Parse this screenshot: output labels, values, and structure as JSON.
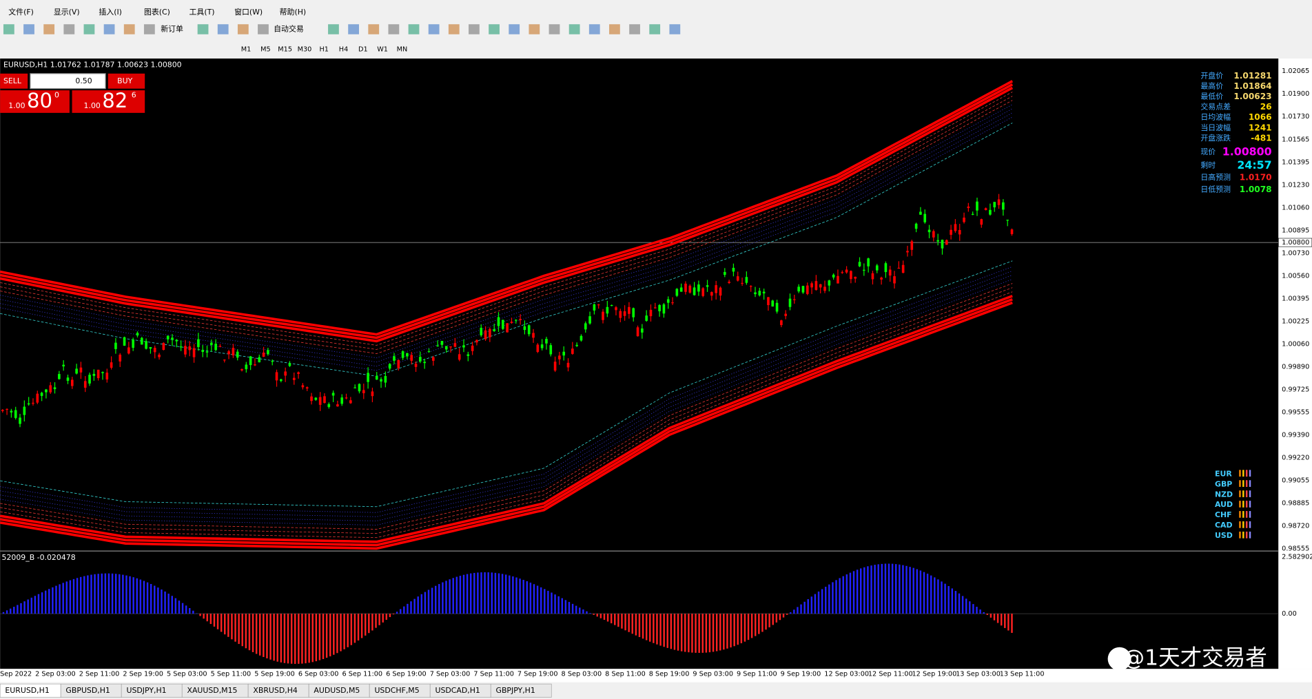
{
  "menu": [
    "文件(F)",
    "显示(V)",
    "插入(I)",
    "图表(C)",
    "工具(T)",
    "窗口(W)",
    "帮助(H)"
  ],
  "toolbar": {
    "new_order": "新订单",
    "auto_trade": "自动交易",
    "timeframes": [
      "M1",
      "M5",
      "M15",
      "M30",
      "H1",
      "H4",
      "D1",
      "W1",
      "MN"
    ]
  },
  "chart_header": "EURUSD,H1  1.01762 1.01787 1.00623 1.00800",
  "trade_panel": {
    "sell": "SELL",
    "buy": "BUY",
    "lots": "0.50",
    "sell_price": {
      "prefix": "1.00",
      "big": "80",
      "sup": "0"
    },
    "buy_price": {
      "prefix": "1.00",
      "big": "82",
      "sup": "6"
    }
  },
  "info_panel": [
    {
      "label": "开盘价",
      "value": "1.01281"
    },
    {
      "label": "最高价",
      "value": "1.01864"
    },
    {
      "label": "最低价",
      "value": "1.00623"
    },
    {
      "label": "交易点差",
      "value": "26"
    },
    {
      "label": "日均波幅",
      "value": "1066"
    },
    {
      "label": "当日波幅",
      "value": "1241"
    },
    {
      "label": "开盘涨跌",
      "value": "-481"
    },
    {
      "label": "现价",
      "value": "1.00800"
    },
    {
      "label": "剩时",
      "value": "24:57"
    },
    {
      "label": "日高预测",
      "value": "1.0170"
    },
    {
      "label": "日低预测",
      "value": "1.0078"
    }
  ],
  "price_axis": [
    "1.02065",
    "1.01900",
    "1.01730",
    "1.01565",
    "1.01395",
    "1.01230",
    "1.01060",
    "1.00895",
    "1.00730",
    "1.00560",
    "1.00395",
    "1.00225",
    "1.00060",
    "0.99890",
    "0.99725",
    "0.99555",
    "0.99390",
    "0.99220",
    "0.99055",
    "0.98885",
    "0.98720",
    "0.98555"
  ],
  "current_price": "1.00800",
  "currencies": [
    "EUR",
    "GBP",
    "NZD",
    "AUD",
    "CHF",
    "CAD",
    "USD"
  ],
  "indicator": {
    "label": "52009_B -0.020478",
    "axis": [
      "2.582902",
      "0.00"
    ]
  },
  "time_axis": [
    "Sep 2022",
    "2 Sep 03:00",
    "2 Sep 11:00",
    "2 Sep 19:00",
    "5 Sep 03:00",
    "5 Sep 11:00",
    "5 Sep 19:00",
    "6 Sep 03:00",
    "6 Sep 11:00",
    "6 Sep 19:00",
    "7 Sep 03:00",
    "7 Sep 11:00",
    "7 Sep 19:00",
    "8 Sep 03:00",
    "8 Sep 11:00",
    "8 Sep 19:00",
    "9 Sep 03:00",
    "9 Sep 11:00",
    "9 Sep 19:00",
    "12 Sep 03:00",
    "12 Sep 11:00",
    "12 Sep 19:00",
    "13 Sep 03:00",
    "13 Sep 11:00"
  ],
  "tabs": [
    "EURUSD,H1",
    "GBPUSD,H1",
    "USDJPY,H1",
    "XAUUSD,M15",
    "XBRUSD,H4",
    "AUDUSD,M5",
    "USDCHF,M5",
    "USDCAD,H1",
    "GBPJPY,H1"
  ],
  "watermark": "@1天才交易者"
}
